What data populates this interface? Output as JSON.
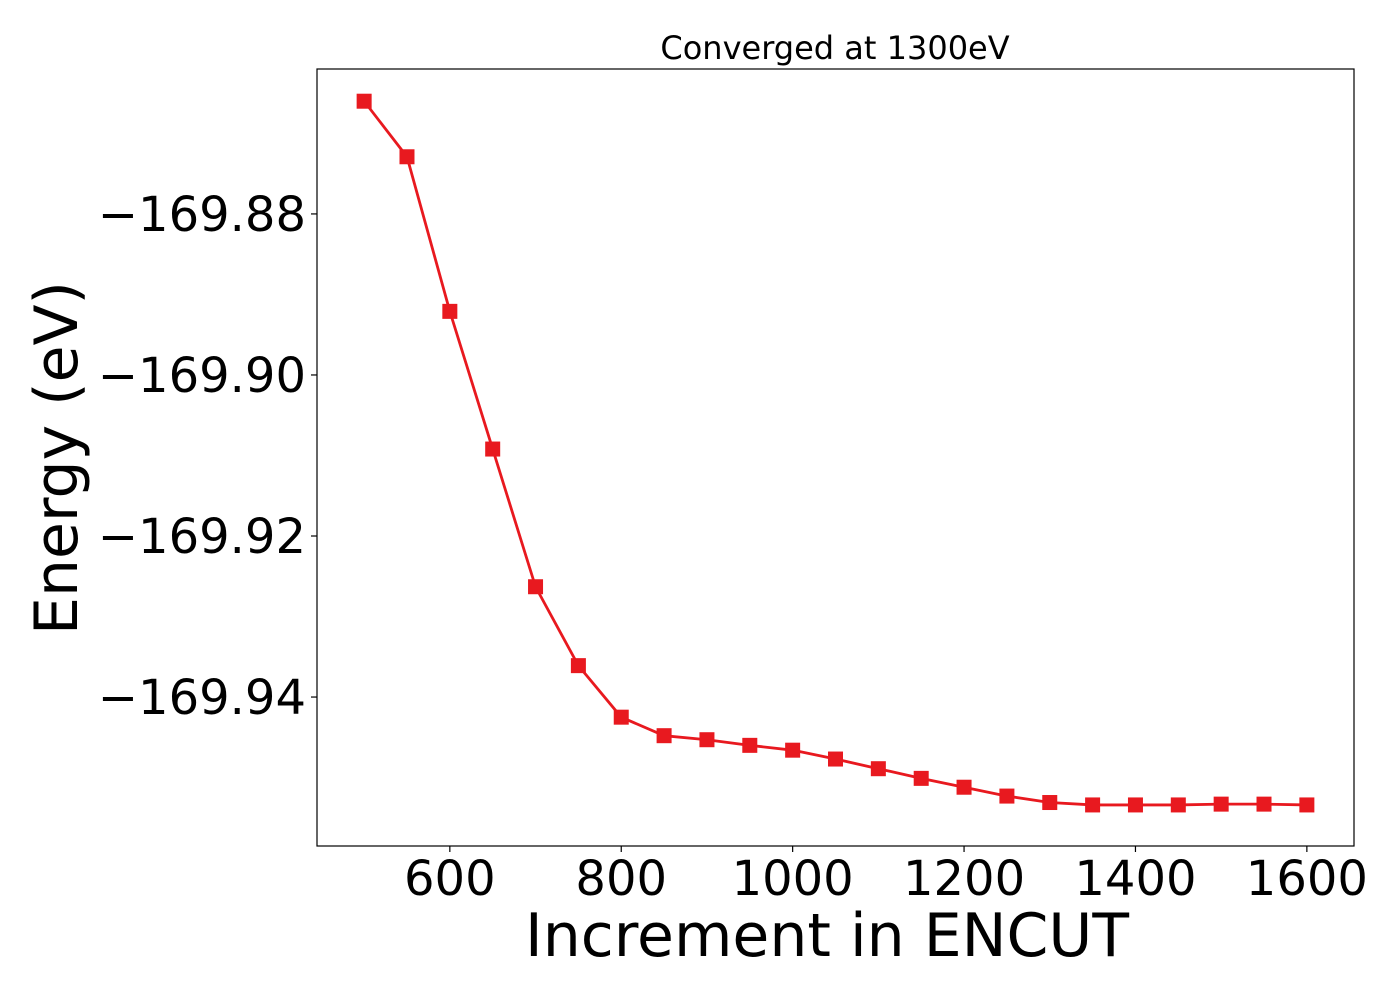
{
  "chart_data": {
    "type": "line",
    "title": "Converged at 1300eV",
    "xlabel": "Increment in ENCUT",
    "ylabel": "Energy (eV)",
    "xlim": [
      445,
      1655
    ],
    "ylim": [
      -169.9585,
      -169.862
    ],
    "xticks": [
      600,
      800,
      1000,
      1200,
      1400,
      1600
    ],
    "xtick_labels": [
      "600",
      "800",
      "1000",
      "1200",
      "1400",
      "1600"
    ],
    "yticks": [
      -169.88,
      -169.9,
      -169.92,
      -169.94
    ],
    "ytick_labels": [
      "−169.88",
      "−169.90",
      "−169.92",
      "−169.94"
    ],
    "grid": false,
    "series": [
      {
        "color": "#e8191f",
        "marker": "square",
        "x": [
          500,
          550,
          600,
          650,
          700,
          750,
          800,
          850,
          900,
          950,
          1000,
          1050,
          1100,
          1150,
          1200,
          1250,
          1300,
          1350,
          1400,
          1450,
          1500,
          1550,
          1600
        ],
        "y": [
          -169.866,
          -169.8729,
          -169.8921,
          -169.9092,
          -169.9263,
          -169.9361,
          -169.9425,
          -169.9448,
          -169.9453,
          -169.946,
          -169.9466,
          -169.9477,
          -169.9489,
          -169.9501,
          -169.9512,
          -169.9523,
          -169.9531,
          -169.9534,
          -169.9534,
          -169.9534,
          -169.9533,
          -169.9533,
          -169.9534
        ]
      }
    ]
  }
}
